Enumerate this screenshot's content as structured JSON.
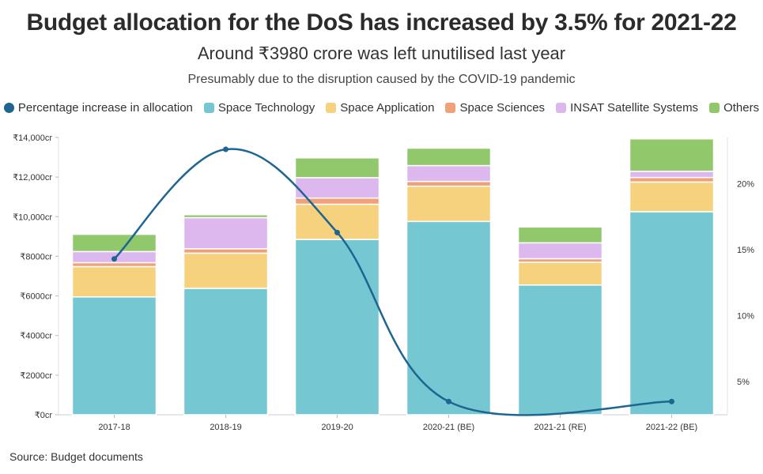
{
  "header": {
    "title": "Budget allocation for the DoS has increased by 3.5% for 2021-22",
    "subtitle": "Around ₹3980 crore was left unutilised last year",
    "note": "Presumably due to the disruption caused by the COVID-19 pandemic"
  },
  "footer": {
    "source": "Source: Budget documents"
  },
  "chart_data": {
    "type": "bar",
    "stacked": true,
    "categories": [
      "2017-18",
      "2018-19",
      "2019-20",
      "2020-21 (BE)",
      "2021-21 (RE)",
      "2021-22 (BE)"
    ],
    "series": [
      {
        "name": "Space Technology",
        "color": "#75c8d1",
        "values": [
          5950,
          6380,
          8850,
          9760,
          6550,
          10250
        ]
      },
      {
        "name": "Space Application",
        "color": "#f6d27f",
        "values": [
          1530,
          1780,
          1780,
          1780,
          1150,
          1500
        ]
      },
      {
        "name": "Space Sciences",
        "color": "#f0a17a",
        "values": [
          200,
          220,
          310,
          240,
          180,
          230
        ]
      },
      {
        "name": "INSAT Satellite Systems",
        "color": "#dcb8ef",
        "values": [
          560,
          1570,
          1030,
          800,
          800,
          310
        ]
      },
      {
        "name": "Others",
        "color": "#92c86c",
        "values": [
          870,
          150,
          1000,
          880,
          800,
          1640
        ]
      }
    ],
    "line_series": {
      "name": "Percentage increase in allocation",
      "color": "#1e6592",
      "values": [
        14.3,
        22.6,
        16.3,
        3.5,
        null,
        3.5
      ]
    },
    "y_left": {
      "ylim": [
        0,
        14000
      ],
      "ticks": [
        "₹0cr",
        "₹2000cr",
        "₹4000cr",
        "₹6000cr",
        "₹8000cr",
        "₹10,000cr",
        "₹12,000cr",
        "₹14,000cr"
      ]
    },
    "y_right": {
      "ylim": [
        2.5,
        23.5
      ],
      "tick_values": [
        5,
        10,
        15,
        20
      ],
      "ticks": [
        "5%",
        "10%",
        "15%",
        "20%"
      ]
    },
    "legend_position": "top"
  }
}
